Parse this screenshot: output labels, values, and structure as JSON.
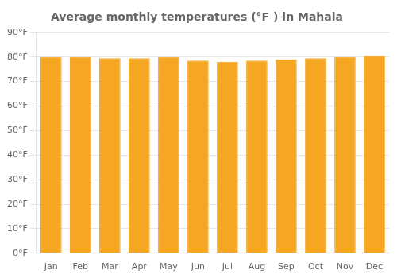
{
  "chart_data": {
    "type": "bar",
    "title": "Average monthly temperatures (°F ) in Mahala",
    "categories": [
      "Jan",
      "Feb",
      "Mar",
      "Apr",
      "May",
      "Jun",
      "Jul",
      "Aug",
      "Sep",
      "Oct",
      "Nov",
      "Dec"
    ],
    "values": [
      80,
      80,
      79.5,
      79.5,
      80,
      78.5,
      78,
      78.5,
      79,
      79.5,
      80,
      80.5
    ],
    "color": "#F5A623",
    "ylim": [
      0,
      90
    ],
    "yticks": [
      {
        "value": 0,
        "label": "0°F"
      },
      {
        "value": 10,
        "label": "10°F"
      },
      {
        "value": 20,
        "label": "20°F"
      },
      {
        "value": 30,
        "label": "30°F"
      },
      {
        "value": 40,
        "label": "40°F"
      },
      {
        "value": 50,
        "label": "50°F"
      },
      {
        "value": 60,
        "label": "60°F"
      },
      {
        "value": 70,
        "label": "70°F"
      },
      {
        "value": 80,
        "label": "80°F"
      },
      {
        "value": 90,
        "label": "90°F"
      }
    ],
    "grid": true
  }
}
